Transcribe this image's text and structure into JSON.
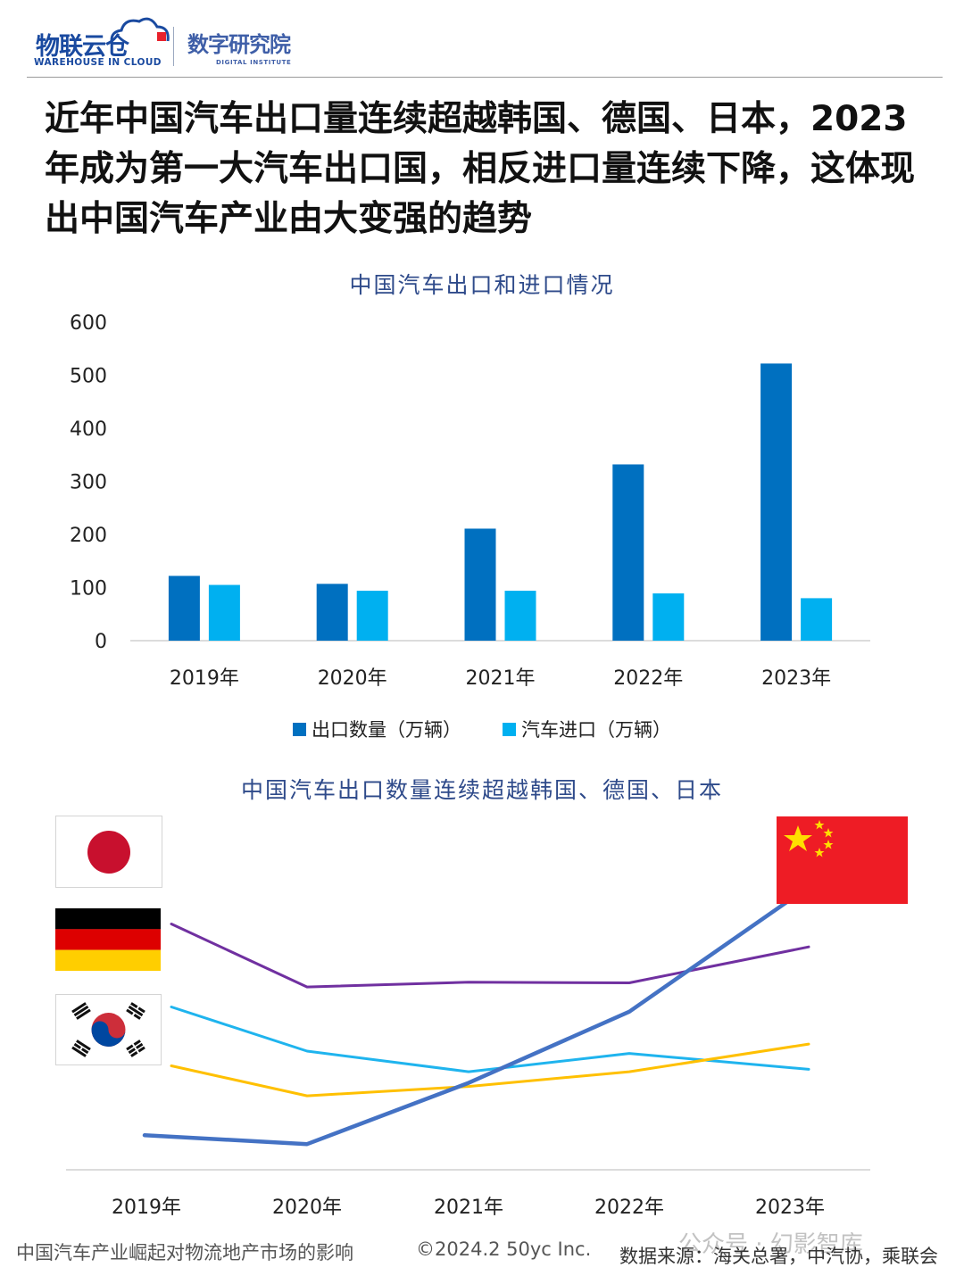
{
  "header": {
    "logo_cn": "物联云仓",
    "logo_en": "WAREHOUSE IN CLOUD",
    "sub_cn": "数字研究院",
    "sub_en": "DIGITAL INSTITUTE"
  },
  "headline": "近年中国汽车出口量连续超越韩国、德国、日本，2023年成为第一大汽车出口国，相反进口量连续下降，这体现出中国汽车产业由大变强的趋势",
  "colors": {
    "export": "#0070c0",
    "import": "#00b0f0",
    "japan": "#7030a0",
    "germany": "#1fb4ee",
    "korea": "#ffc000",
    "china": "#4472c4"
  },
  "chart_data": [
    {
      "type": "bar",
      "title": "中国汽车出口和进口情况",
      "categories": [
        "2019年",
        "2020年",
        "2021年",
        "2022年",
        "2023年"
      ],
      "series": [
        {
          "name": "出口数量（万辆）",
          "values": [
            122,
            107,
            211,
            332,
            522
          ]
        },
        {
          "name": "汽车进口（万辆）",
          "values": [
            105,
            94,
            94,
            89,
            80
          ]
        }
      ],
      "ylim": [
        0,
        600
      ],
      "yticks": [
        "0",
        "100",
        "200",
        "300",
        "400",
        "500",
        "600"
      ],
      "legend": "bottom",
      "grid": false
    },
    {
      "type": "line",
      "title": "中国汽车出口数量连续超越韩国、德国、日本",
      "categories": [
        "2019年",
        "2020年",
        "2021年",
        "2022年",
        "2023年"
      ],
      "series": [
        {
          "name": "日本",
          "values": [
            481,
            374,
            382,
            381,
            442
          ]
        },
        {
          "name": "德国",
          "values": [
            340,
            265,
            230,
            261,
            234
          ]
        },
        {
          "name": "韩国",
          "values": [
            240,
            189,
            205,
            230,
            277
          ]
        },
        {
          "name": "中国",
          "values": [
            122,
            107,
            211,
            332,
            522
          ]
        }
      ],
      "y_axis_labels_shown": false,
      "legend": "flags"
    }
  ],
  "footer": {
    "left": "中国汽车产业崛起对物流地产市场的影响",
    "mid": "©2024.2 50yc Inc.",
    "right": "数据来源：海关总署，中汽协，乘联会"
  },
  "watermark": "公众号 · 幻影智库"
}
